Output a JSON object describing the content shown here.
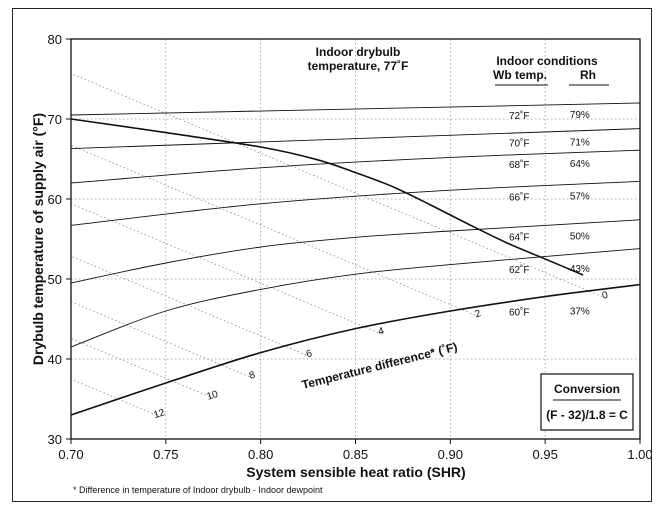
{
  "chart_data": {
    "type": "line",
    "title": "",
    "xlabel": "System sensible heat ratio (SHR)",
    "ylabel": "Drybulb temperature of supply air (°F)",
    "xlim": [
      0.7,
      1.0
    ],
    "ylim": [
      30,
      80
    ],
    "x_ticks": [
      "0.70",
      "0.75",
      "0.80",
      "0.85",
      "0.90",
      "0.95",
      "1.00"
    ],
    "y_ticks": [
      "30",
      "40",
      "50",
      "60",
      "70",
      "80"
    ],
    "grid": true,
    "indoor_note": [
      "Indoor drybulb",
      "temperature, 77˚F"
    ],
    "conditions_header": [
      "Indoor conditions",
      "Wb temp.",
      "Rh"
    ],
    "series": [
      {
        "name": "72˚F",
        "rh": "79%",
        "x": [
          0.7,
          1.0
        ],
        "y": [
          70.5,
          72.0
        ]
      },
      {
        "name": "70˚F",
        "rh": "71%",
        "x": [
          0.7,
          1.0
        ],
        "y": [
          66.3,
          68.8
        ]
      },
      {
        "name": "68˚F",
        "rh": "64%",
        "x": [
          0.7,
          0.8,
          0.9,
          1.0
        ],
        "y": [
          62.0,
          63.9,
          65.2,
          66.1
        ]
      },
      {
        "name": "66˚F",
        "rh": "57%",
        "x": [
          0.7,
          0.8,
          0.9,
          1.0
        ],
        "y": [
          56.7,
          59.4,
          61.1,
          62.2
        ]
      },
      {
        "name": "64˚F",
        "rh": "50%",
        "x": [
          0.7,
          0.75,
          0.8,
          0.85,
          0.9,
          1.0
        ],
        "y": [
          49.5,
          52.0,
          54.0,
          55.2,
          56.0,
          57.4
        ]
      },
      {
        "name": "62˚F",
        "rh": "43%",
        "x": [
          0.7,
          0.75,
          0.8,
          0.85,
          0.9,
          1.0
        ],
        "y": [
          41.5,
          46.0,
          48.7,
          50.6,
          51.8,
          53.8
        ]
      },
      {
        "name": "60˚F",
        "rh": "37%",
        "x": [
          0.7,
          0.75,
          0.8,
          0.85,
          0.9,
          0.95,
          1.0
        ],
        "y": [
          33.0,
          37.0,
          40.8,
          43.8,
          46.0,
          47.8,
          49.3
        ]
      }
    ],
    "boundary_curve": {
      "x": [
        0.7,
        0.75,
        0.8,
        0.83,
        0.85,
        0.87,
        0.89,
        0.91,
        0.93,
        0.95,
        0.97
      ],
      "y": [
        70.0,
        68.3,
        66.5,
        64.9,
        63.3,
        61.5,
        59.2,
        56.8,
        54.5,
        52.5,
        50.5
      ]
    },
    "temperature_difference": {
      "label": "Temperature difference* (˚F)",
      "values": [
        {
          "label": "0",
          "x": 0.982,
          "y": 47.6
        },
        {
          "label": "2",
          "x": 0.915,
          "y": 45.3
        },
        {
          "label": "4",
          "x": 0.864,
          "y": 43.1
        },
        {
          "label": "6",
          "x": 0.826,
          "y": 40.3
        },
        {
          "label": "8",
          "x": 0.796,
          "y": 37.6
        },
        {
          "label": "10",
          "x": 0.775,
          "y": 35.1
        },
        {
          "label": "12",
          "x": 0.747,
          "y": 32.8
        }
      ]
    },
    "conversion": {
      "title": "Conversion",
      "formula": "(F - 32)/1.8 = C"
    },
    "footnote": "* Difference in temperature of Indoor drybulb - Indoor dewpoint"
  }
}
